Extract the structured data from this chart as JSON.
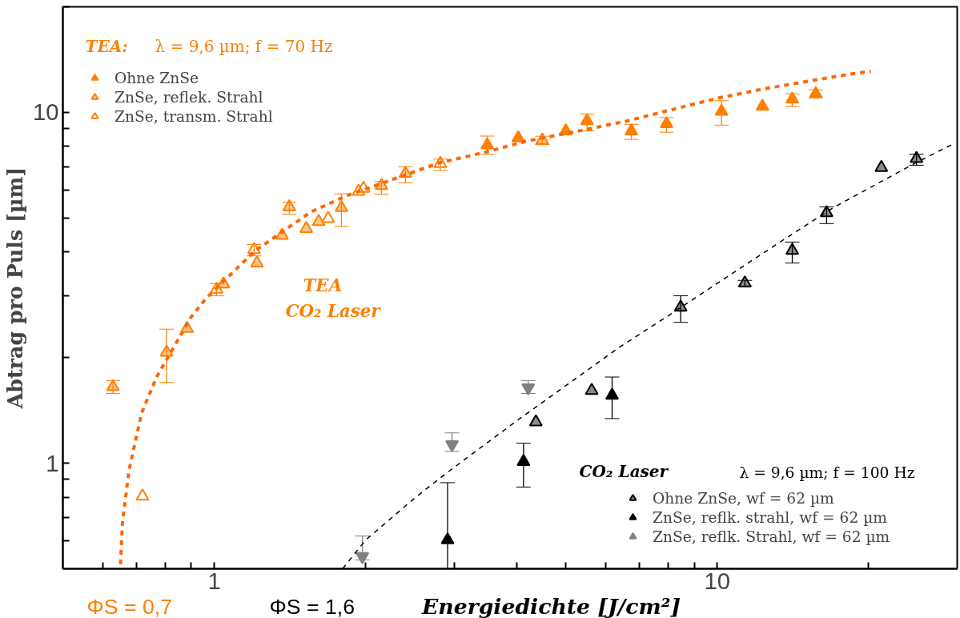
{
  "chart_data": {
    "type": "scatter",
    "xlabel": "Energiedichte [J/cm²]",
    "ylabel": "Abtrag pro Puls [µm]",
    "log": "xy",
    "xlim": [
      0.5,
      30
    ],
    "ylim": [
      0.5,
      20
    ],
    "xticks": [
      {
        "value": 0.6,
        "label": null
      },
      {
        "value": 0.7,
        "label": null
      },
      {
        "value": 0.8,
        "label": null
      },
      {
        "value": 0.9,
        "label": null
      },
      1,
      {
        "value": 2,
        "label": null
      },
      {
        "value": 3,
        "label": null
      },
      {
        "value": 4,
        "label": null
      },
      {
        "value": 5,
        "label": null
      },
      {
        "value": 6,
        "label": null
      },
      {
        "value": 7,
        "label": null
      },
      {
        "value": 8,
        "label": null
      },
      {
        "value": 9,
        "label": null
      },
      10,
      {
        "value": 20,
        "label": null
      }
    ],
    "yticks": [
      {
        "value": 0.6,
        "label": null
      },
      {
        "value": 0.7,
        "label": null
      },
      {
        "value": 0.8,
        "label": null
      },
      {
        "value": 0.9,
        "label": null
      },
      1,
      {
        "value": 2,
        "label": null
      },
      {
        "value": 3,
        "label": null
      },
      {
        "value": 4,
        "label": null
      },
      {
        "value": 5,
        "label": null
      },
      {
        "value": 6,
        "label": null
      },
      {
        "value": 7,
        "label": null
      },
      {
        "value": 8,
        "label": null
      },
      {
        "value": 9,
        "label": null
      },
      10,
      {
        "value": 20,
        "label": null
      }
    ],
    "grid": false,
    "legend": "left",
    "marker": "triangle",
    "series": [
      {
        "name": "Ohne ZnSe",
        "color": "#ff7f00",
        "x": [
          3.49,
          4.02,
          5.0,
          5.51,
          6.75,
          7.93,
          10.2,
          12.3,
          14.1,
          15.7
        ],
        "values": [
          8.07,
          8.45,
          8.85,
          9.46,
          8.85,
          9.28,
          10.06,
          10.4,
          10.9,
          11.3
        ],
        "errors": [
          [
            7.6,
            8.56
          ],
          null,
          null,
          [
            8.85,
            9.9
          ],
          [
            8.38,
            9.25
          ],
          [
            8.78,
            9.66
          ],
          [
            9.2,
            10.8
          ],
          null,
          [
            10.4,
            11.3
          ],
          [
            11.0,
            11.6
          ]
        ]
      },
      {
        "name": "ZnSe, reflek. Strahl",
        "color": "#ff7f00",
        "x": [
          0.629,
          0.804,
          0.883,
          1.043,
          1.216,
          1.364,
          1.41,
          1.524,
          1.613,
          1.79,
          2.15,
          2.4,
          4.49
        ],
        "values": [
          1.65,
          2.07,
          2.42,
          3.24,
          3.72,
          4.46,
          5.38,
          4.66,
          4.88,
          5.35,
          6.18,
          6.7,
          8.33
        ],
        "errors": [
          [
            1.58,
            1.72
          ],
          [
            1.7,
            2.41
          ],
          null,
          null,
          null,
          null,
          [
            5.13,
            5.55
          ],
          null,
          null,
          [
            4.73,
            5.86
          ],
          [
            5.85,
            6.35
          ],
          [
            6.3,
            7.0
          ],
          [
            8.1,
            8.55
          ]
        ]
      },
      {
        "name": "ZnSe, transm. Strahl",
        "color": "#ff7f00",
        "x": [
          0.72,
          1.011,
          1.2,
          1.684,
          1.937,
          1.98,
          2.815
        ],
        "values": [
          0.805,
          3.13,
          4.06,
          4.98,
          5.95,
          6.07,
          7.14
        ],
        "errors": [
          null,
          [
            3.0,
            3.25
          ],
          [
            3.9,
            4.2
          ],
          null,
          null,
          null,
          [
            6.83,
            7.36
          ]
        ]
      },
      {
        "type": "line",
        "color": "#ff6600",
        "line_style": "dashed",
        "marker": "none",
        "x": [
          0.651,
          0.657,
          0.677,
          0.717,
          0.768,
          0.898,
          0.963,
          1.205,
          1.555,
          1.84,
          2.81,
          3.46,
          4.16,
          5.51,
          6.63,
          9.96,
          12.5,
          18.0,
          20.2
        ],
        "values": [
          0.515,
          0.68,
          0.955,
          1.39,
          1.76,
          2.6,
          2.95,
          4.03,
          5.2,
          5.8,
          7.19,
          7.7,
          8.27,
          8.95,
          9.46,
          10.96,
          11.7,
          12.8,
          13.1
        ]
      },
      {
        "name": "Ohne ZnSe, wf = 62 µm",
        "color": "#000000",
        "x": [
          4.36,
          5.63,
          8.46,
          11.35,
          14.1,
          16.5,
          21.2,
          24.9
        ],
        "values": [
          1.31,
          1.61,
          2.78,
          3.26,
          4.04,
          5.17,
          6.96,
          7.38
        ],
        "errors": [
          null,
          null,
          [
            2.52,
            3.0
          ],
          [
            3.2,
            3.32
          ],
          [
            3.72,
            4.27
          ],
          [
            4.82,
            5.38
          ],
          null,
          [
            7.07,
            7.6
          ]
        ]
      },
      {
        "name": "ZnSe, reflk. strahl, wf = 62 µm",
        "color": "#000000",
        "x": [
          2.91,
          4.12,
          6.18
        ],
        "values": [
          0.604,
          1.01,
          1.56
        ],
        "errors": [
          [
            0.5,
            0.88
          ],
          [
            0.855,
            1.14
          ],
          [
            1.34,
            1.76
          ]
        ]
      },
      {
        "name": "ZnSe, reflk. Strahl, wf = 62 µm",
        "color": "#808080",
        "x": [
          1.97,
          2.97,
          4.21
        ],
        "values": [
          0.542,
          1.13,
          1.64
        ],
        "errors": [
          [
            0.53,
            0.62
          ],
          [
            1.08,
            1.22
          ],
          [
            1.58,
            1.72
          ]
        ]
      },
      {
        "type": "line",
        "color": "#000000",
        "line_style": "dashed",
        "marker": "none",
        "x": [
          1.8,
          2.0,
          2.51,
          2.89,
          3.42,
          4.05,
          6.36,
          7.95,
          10.7,
          13.6,
          17.0,
          24.9,
          29.3
        ],
        "values": [
          0.5,
          0.604,
          0.798,
          0.935,
          1.12,
          1.34,
          2.13,
          2.62,
          3.47,
          4.35,
          5.35,
          7.2,
          8.1
        ]
      }
    ],
    "annotations": [
      "TEA:",
      "λ = 9,6 µm; f = 70 Hz",
      "TEA",
      "CO₂ Laser",
      "CO₂ Laser",
      "λ = 9,6 µm;  f = 100 Hz",
      "ΦS = 0,7",
      "ΦS = 1,6"
    ]
  }
}
